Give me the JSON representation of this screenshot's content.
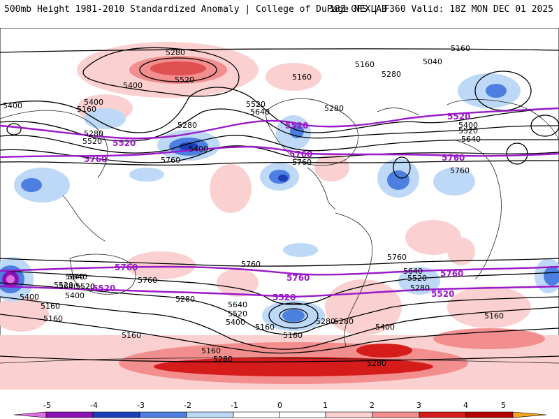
{
  "header": {
    "left_title": "500mb Height 1981-2010 Standardized Anomaly | College of DuPage NEXLAB",
    "right_title": "18Z GFS | F360 Valid: 18Z MON DEC 01 2025"
  },
  "colors": {
    "contour_black": "#000000",
    "contour_highlight": "#9b19c9",
    "neg5": "#e070e0",
    "neg4": "#8a12b5",
    "neg3": "#1c3fb8",
    "neg2": "#4c7fe0",
    "neg1": "#bdd9f7",
    "pos1": "#fbd0d0",
    "pos2": "#f28e8e",
    "pos3": "#d61b1b",
    "pos4": "#b80000",
    "pos5": "#f5a51d"
  },
  "contour_labels": {
    "black": [
      "5280",
      "5520",
      "5400",
      "5160",
      "5040",
      "5160",
      "5280",
      "5160",
      "5400",
      "5280",
      "5520",
      "5640",
      "5280",
      "5400",
      "5160",
      "5280",
      "5400",
      "5520",
      "5640",
      "5520",
      "5760",
      "5760",
      "5760",
      "5400",
      "5160",
      "5520",
      "5640",
      "5760",
      "5760",
      "5640",
      "5520",
      "5400",
      "5280",
      "5160",
      "5640",
      "5520",
      "5400",
      "5280",
      "5160",
      "5280",
      "5400",
      "5160",
      "5280",
      "5160",
      "5280",
      "5640",
      "5520",
      "5760",
      "5160",
      "5280",
      "5640",
      "5520",
      "5400",
      "5160"
    ],
    "highlight": [
      "5520",
      "5760",
      "5520",
      "5760",
      "5520",
      "5760",
      "5760",
      "5760",
      "5520",
      "5520",
      "5760",
      "5520"
    ]
  },
  "colorbar": {
    "ticks": [
      "-5",
      "-4",
      "-3",
      "-2",
      "-1",
      "0",
      "1",
      "2",
      "3",
      "4",
      "5"
    ]
  }
}
